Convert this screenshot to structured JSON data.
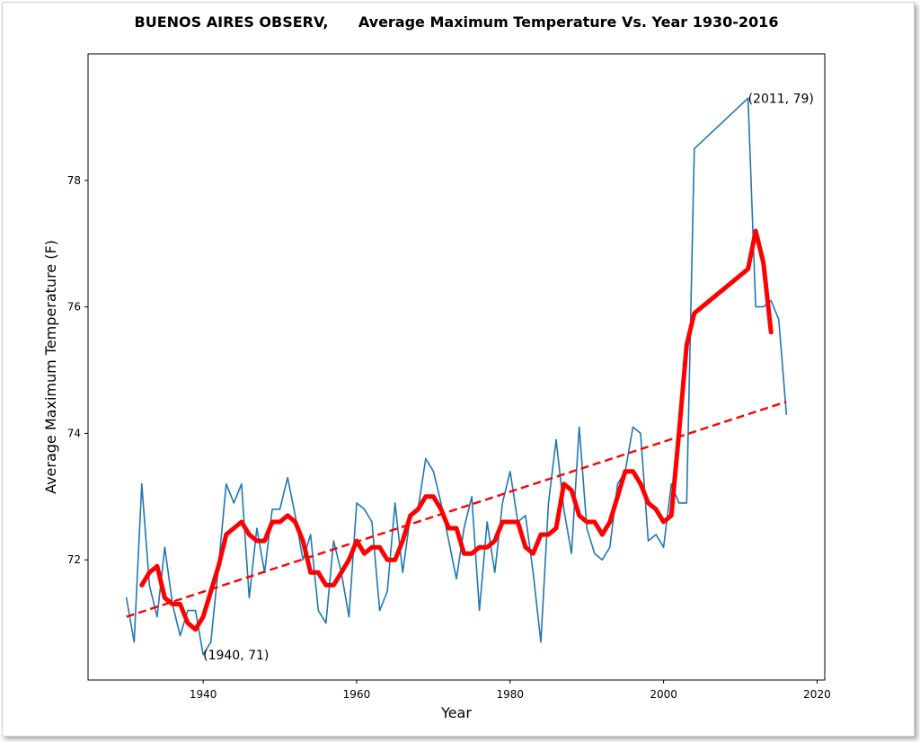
{
  "chart_data": {
    "type": "line",
    "title": "BUENOS AIRES OBSERV,      Average Maximum Temperature Vs. Year 1930-2016",
    "xlabel": "Year",
    "ylabel": "Average Maximum Temperature (F)",
    "xlim": [
      1925,
      2021
    ],
    "ylim": [
      70.1,
      80.0
    ],
    "xticks": [
      1940,
      1960,
      1980,
      2000,
      2020
    ],
    "yticks": [
      72,
      74,
      76,
      78
    ],
    "grid": false,
    "series": [
      {
        "color": "#1f77b4",
        "style": "solid",
        "x": [
          1930,
          1931,
          1932,
          1933,
          1934,
          1935,
          1936,
          1937,
          1938,
          1939,
          1940,
          1941,
          1942,
          1943,
          1944,
          1945,
          1946,
          1947,
          1948,
          1949,
          1950,
          1951,
          1952,
          1953,
          1954,
          1955,
          1956,
          1957,
          1958,
          1959,
          1960,
          1961,
          1962,
          1963,
          1964,
          1965,
          1966,
          1967,
          1968,
          1969,
          1970,
          1971,
          1972,
          1973,
          1974,
          1975,
          1976,
          1977,
          1978,
          1979,
          1980,
          1981,
          1982,
          1983,
          1984,
          1985,
          1986,
          1987,
          1988,
          1989,
          1990,
          1991,
          1992,
          1993,
          1994,
          1995,
          1996,
          1997,
          1998,
          1999,
          2000,
          2001,
          2002,
          2003,
          2004,
          2011,
          2012,
          2013,
          2014,
          2015,
          2016
        ],
        "values": [
          71.4,
          70.7,
          73.2,
          71.6,
          71.1,
          72.2,
          71.3,
          70.8,
          71.2,
          71.2,
          70.5,
          70.7,
          71.9,
          73.2,
          72.9,
          73.2,
          71.4,
          72.5,
          71.8,
          72.8,
          72.8,
          73.3,
          72.7,
          72.0,
          72.4,
          71.2,
          71.0,
          72.3,
          71.8,
          71.1,
          72.9,
          72.8,
          72.6,
          71.2,
          71.5,
          72.9,
          71.8,
          72.7,
          72.8,
          73.6,
          73.4,
          72.9,
          72.3,
          71.7,
          72.5,
          73.0,
          71.2,
          72.6,
          71.8,
          72.9,
          73.4,
          72.6,
          72.7,
          71.8,
          70.7,
          72.9,
          73.9,
          72.8,
          72.1,
          74.1,
          72.5,
          72.1,
          72.0,
          72.2,
          73.2,
          73.4,
          74.1,
          74.0,
          72.3,
          72.4,
          72.2,
          73.2,
          72.9,
          72.9,
          78.5,
          79.3,
          76.0,
          76.0,
          76.1,
          75.8,
          74.3
        ]
      },
      {
        "color": "#ff0000",
        "style": "solid",
        "x": [
          1932,
          1933,
          1934,
          1935,
          1936,
          1937,
          1938,
          1939,
          1940,
          1941,
          1942,
          1943,
          1944,
          1945,
          1946,
          1947,
          1948,
          1949,
          1950,
          1951,
          1952,
          1953,
          1954,
          1955,
          1956,
          1957,
          1958,
          1959,
          1960,
          1961,
          1962,
          1963,
          1964,
          1965,
          1966,
          1967,
          1968,
          1969,
          1970,
          1971,
          1972,
          1973,
          1974,
          1975,
          1976,
          1977,
          1978,
          1979,
          1980,
          1981,
          1982,
          1983,
          1984,
          1985,
          1986,
          1987,
          1988,
          1989,
          1990,
          1991,
          1992,
          1993,
          1994,
          1995,
          1996,
          1997,
          1998,
          1999,
          2000,
          2001,
          2002,
          2003,
          2004,
          2011,
          2012,
          2013,
          2014
        ],
        "values": [
          71.6,
          71.8,
          71.9,
          71.4,
          71.3,
          71.3,
          71.0,
          70.9,
          71.1,
          71.5,
          71.9,
          72.4,
          72.5,
          72.6,
          72.4,
          72.3,
          72.3,
          72.6,
          72.6,
          72.7,
          72.6,
          72.3,
          71.8,
          71.8,
          71.6,
          71.6,
          71.8,
          72.0,
          72.3,
          72.1,
          72.2,
          72.2,
          72.0,
          72.0,
          72.3,
          72.7,
          72.8,
          73.0,
          73.0,
          72.8,
          72.5,
          72.5,
          72.1,
          72.1,
          72.2,
          72.2,
          72.3,
          72.6,
          72.6,
          72.6,
          72.2,
          72.1,
          72.4,
          72.4,
          72.5,
          73.2,
          73.1,
          72.7,
          72.6,
          72.6,
          72.4,
          72.6,
          73.0,
          73.4,
          73.4,
          73.2,
          72.9,
          72.8,
          72.6,
          72.7,
          74.0,
          75.4,
          75.9,
          76.6,
          77.2,
          76.7,
          75.6
        ]
      },
      {
        "color": "#ff0000",
        "style": "dashed",
        "x": [
          1930,
          2016
        ],
        "values": [
          71.1,
          74.5
        ]
      }
    ],
    "annotations": [
      {
        "text": "(1940, 71)",
        "x": 1940,
        "y": 70.5
      },
      {
        "text": "(2011, 79)",
        "x": 2011,
        "y": 79.3
      }
    ]
  }
}
